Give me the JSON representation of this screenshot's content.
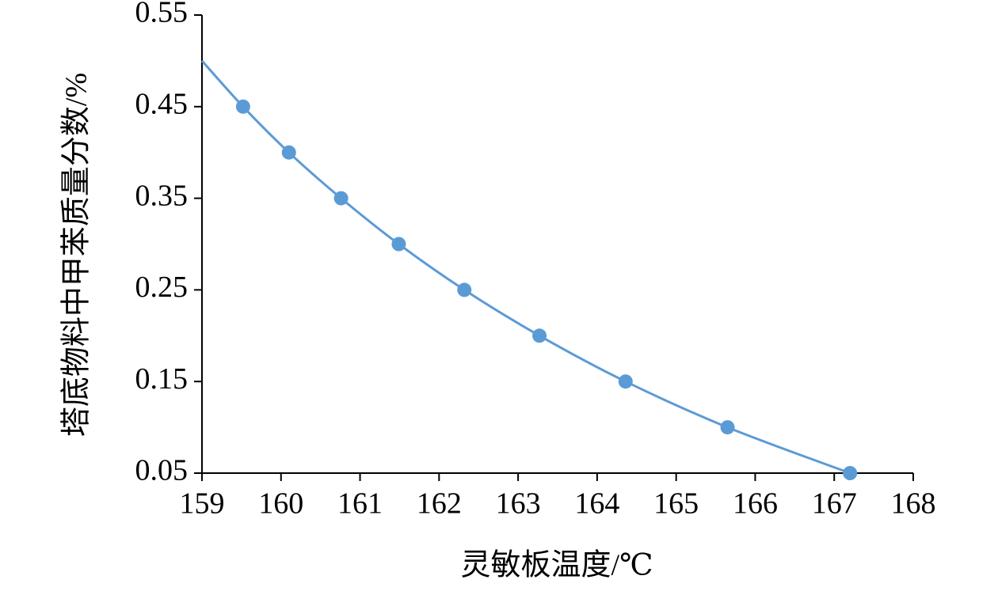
{
  "chart_data": {
    "type": "scatter",
    "x_label": "灵敏板温度/℃",
    "y_label": "塔底物料中甲苯质量分数/%",
    "xlim": [
      159,
      168
    ],
    "ylim": [
      0.05,
      0.55
    ],
    "xticks": [
      159,
      160,
      161,
      162,
      163,
      164,
      165,
      166,
      167,
      168
    ],
    "yticks": [
      0.05,
      0.15,
      0.25,
      0.35,
      0.45,
      0.55
    ],
    "series": [
      {
        "mode": "markers",
        "color": "#5b9bd5",
        "x": [
          159.52,
          160.1,
          160.76,
          161.49,
          162.32,
          163.27,
          164.36,
          165.65,
          167.2
        ],
        "values": [
          0.45,
          0.4,
          0.35,
          0.3,
          0.25,
          0.2,
          0.15,
          0.1,
          0.05
        ]
      },
      {
        "mode": "line",
        "color": "#5b9bd5",
        "x": [
          159,
          159.52,
          160.1,
          160.76,
          161.49,
          162.32,
          163.27,
          164.36,
          165.65,
          167.2
        ],
        "values": [
          0.5,
          0.45,
          0.4,
          0.35,
          0.3,
          0.25,
          0.2,
          0.15,
          0.1,
          0.05
        ]
      }
    ]
  }
}
